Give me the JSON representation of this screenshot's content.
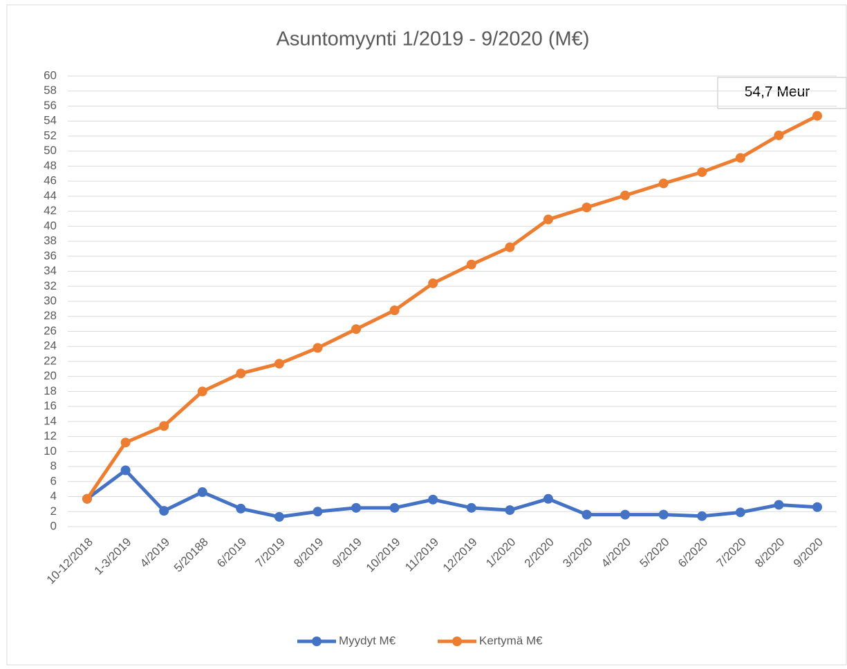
{
  "chart_data": {
    "type": "line",
    "title": "Asuntomyynti 1/2019 - 9/2020 (M€)",
    "annotation": "54,7 Meur",
    "categories": [
      "10-12/2018",
      "1-3/2019",
      "4/2019",
      "5/20188",
      "6/2019",
      "7/2019",
      "8/2019",
      "9/2019",
      "10/2019",
      "11/2019",
      "12/2019",
      "1/2020",
      "2/2020",
      "3/2020",
      "4/2020",
      "5/2020",
      "6/2020",
      "7/2020",
      "8/2020",
      "9/2020"
    ],
    "series": [
      {
        "name": "Myydyt M€",
        "color": "#4472c4",
        "values": [
          3.7,
          7.5,
          2.1,
          4.6,
          2.4,
          1.3,
          2.0,
          2.5,
          2.5,
          3.6,
          2.5,
          2.2,
          3.7,
          1.6,
          1.6,
          1.6,
          1.4,
          1.9,
          2.9,
          2.6
        ]
      },
      {
        "name": "Kertymä M€",
        "color": "#ed7d31",
        "values": [
          3.7,
          11.2,
          13.4,
          18.0,
          20.4,
          21.7,
          23.8,
          26.3,
          28.8,
          32.4,
          34.9,
          37.2,
          40.9,
          42.5,
          44.1,
          45.7,
          47.2,
          49.1,
          52.1,
          54.7
        ]
      }
    ],
    "ylim": [
      0,
      60
    ],
    "yticks": [
      0,
      2,
      4,
      6,
      8,
      10,
      12,
      14,
      16,
      18,
      20,
      22,
      24,
      26,
      28,
      30,
      32,
      34,
      36,
      38,
      40,
      42,
      44,
      46,
      48,
      50,
      52,
      54,
      56,
      58,
      60
    ],
    "grid": true,
    "legend": "bottom"
  }
}
